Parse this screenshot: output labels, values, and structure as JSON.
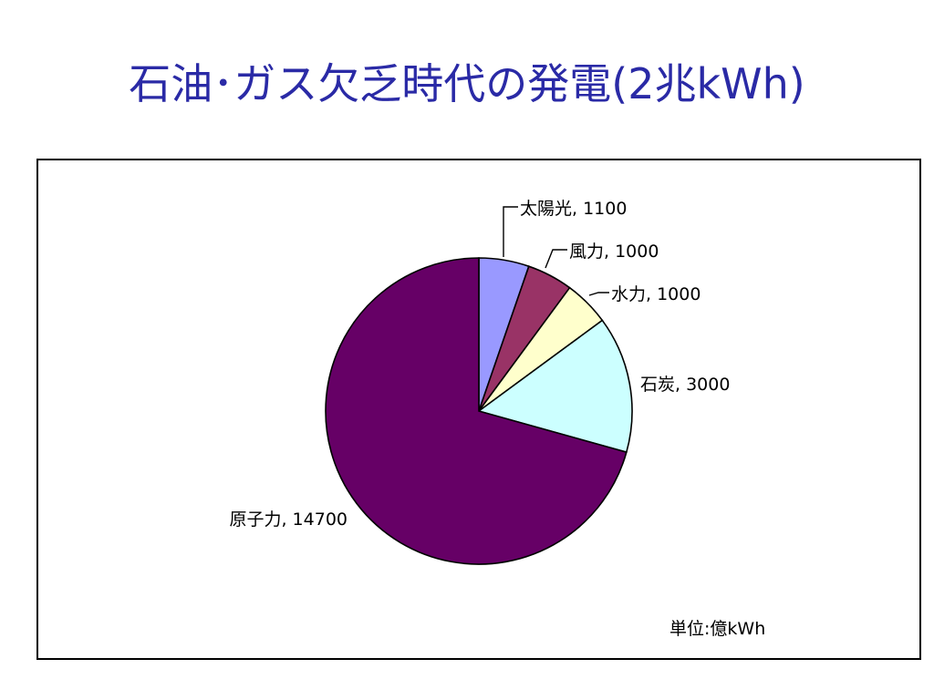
{
  "slide": {
    "title": "石油･ガス欠乏時代の発電(2兆kWh)"
  },
  "chart_data": {
    "type": "pie",
    "title": "",
    "unit_note": "単位:億kWh",
    "slices": [
      {
        "label": "太陽光, 1100",
        "name": "太陽光",
        "value": 1100,
        "color": "#9999ff"
      },
      {
        "label": "風力, 1000",
        "name": "風力",
        "value": 1000,
        "color": "#993366"
      },
      {
        "label": "水力, 1000",
        "name": "水力",
        "value": 1000,
        "color": "#ffffcc"
      },
      {
        "label": "石炭, 3000",
        "name": "石炭",
        "value": 3000,
        "color": "#ccffff"
      },
      {
        "label": "原子力, 14700",
        "name": "原子力",
        "value": 14700,
        "color": "#660066"
      }
    ],
    "start_angle_deg": 0,
    "direction": "clockwise",
    "legend": "none",
    "data_labels": "category and value"
  }
}
